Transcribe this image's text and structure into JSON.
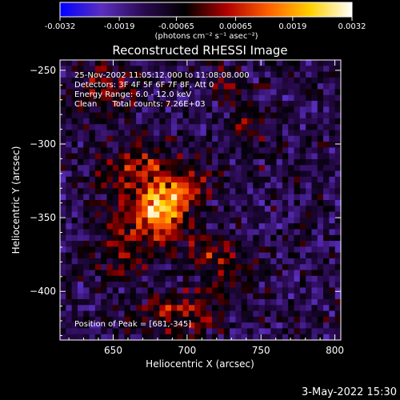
{
  "chart_data": {
    "type": "heatmap",
    "title": "Reconstructed RHESSI Image",
    "xlabel": "Heliocentric X (arcsec)",
    "ylabel": "Heliocentric Y (arcsec)",
    "xlim": [
      614,
      804
    ],
    "ylim": [
      -433,
      -243
    ],
    "x_ticks": [
      650,
      700,
      750,
      800
    ],
    "y_ticks": [
      -250,
      -300,
      -350,
      -400
    ],
    "colorbar": {
      "range": [
        -0.0032,
        0.0032
      ],
      "tick_values": [
        -0.0032,
        -0.0019,
        -0.00065,
        0.00065,
        0.0019,
        0.0032
      ],
      "tick_labels": [
        "-0.0032",
        "-0.0019",
        "-0.00065",
        "0.00065",
        "0.0019",
        "0.0032"
      ],
      "unit_label": "(photons cm⁻² s⁻¹ asec⁻²)"
    },
    "info_lines": [
      "25-Nov-2002 11:05:12.000 to 11:08:08.000",
      "Detectors: 3F 4F 5F 6F 7F 8F, Att 0",
      "Energy Range: 6.0 - 12.0 keV",
      "Clean      Total counts: 7.26E+03"
    ],
    "peak_label": "Position of Peak = [681,-345]",
    "peak": {
      "x": 681,
      "y": -345
    },
    "grid": false,
    "colormap": [
      "#0000ff",
      "#5a2fc0",
      "#2a0a50",
      "#000000",
      "#b00000",
      "#ff6000",
      "#ffd000",
      "#ffffff"
    ],
    "sources": [
      {
        "x": 681,
        "y": -345,
        "sx": 13,
        "sy": 12,
        "amp": 0.0034
      },
      {
        "x": 668,
        "y": -318,
        "sx": 16,
        "sy": 14,
        "amp": 0.0015
      },
      {
        "x": 700,
        "y": -328,
        "sx": 12,
        "sy": 12,
        "amp": 0.0012
      },
      {
        "x": 658,
        "y": -368,
        "sx": 14,
        "sy": 14,
        "amp": 0.0011
      },
      {
        "x": 643,
        "y": -262,
        "sx": 14,
        "sy": 12,
        "amp": 0.0011
      },
      {
        "x": 692,
        "y": -415,
        "sx": 18,
        "sy": 10,
        "amp": 0.0016
      },
      {
        "x": 728,
        "y": -385,
        "sx": 10,
        "sy": 10,
        "amp": 0.0012
      },
      {
        "x": 742,
        "y": -290,
        "sx": 10,
        "sy": 14,
        "amp": 0.0008
      },
      {
        "x": 728,
        "y": -260,
        "sx": 8,
        "sy": 8,
        "amp": 0.001
      },
      {
        "x": 712,
        "y": -372,
        "sx": 10,
        "sy": 8,
        "amp": 0.001
      }
    ],
    "background_level": -0.0012
  },
  "footer": {
    "timestamp": "3-May-2022 15:30"
  }
}
